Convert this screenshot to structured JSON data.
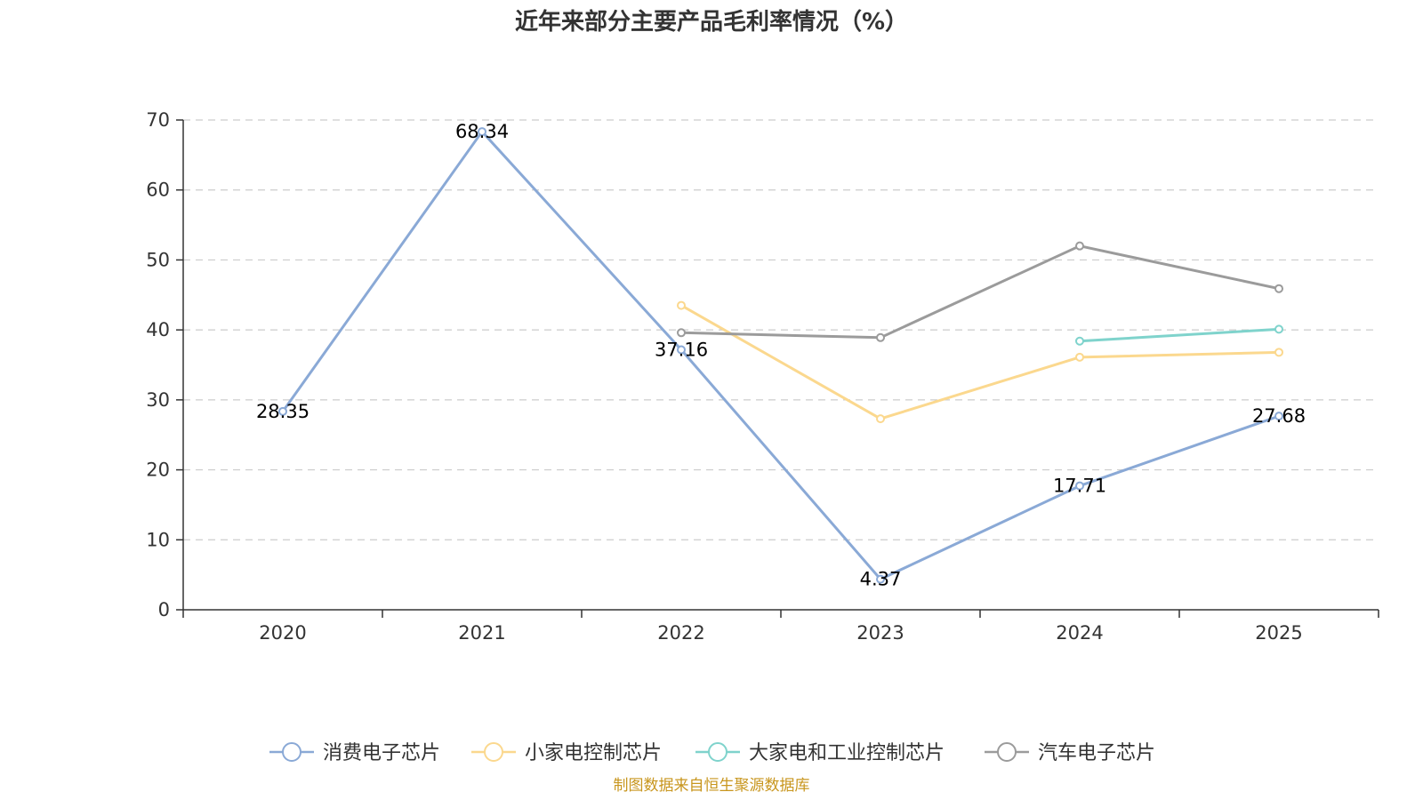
{
  "chart_data": {
    "type": "line",
    "title": "近年来部分主要产品毛利率情况（%）",
    "categories": [
      "2020",
      "2021",
      "2022",
      "2023",
      "2024",
      "2025"
    ],
    "ylim": [
      0,
      70
    ],
    "yticks": [
      0,
      10,
      20,
      30,
      40,
      50,
      60,
      70
    ],
    "grid": true,
    "legend_position": "bottom",
    "series": [
      {
        "name": "消费电子芯片",
        "color": "#8aa9d6",
        "values": [
          28.35,
          68.34,
          37.16,
          4.37,
          17.71,
          27.68
        ],
        "labels": [
          "28.35",
          "68.34",
          "37.16",
          "4.37",
          "17.71",
          "27.68"
        ]
      },
      {
        "name": "小家电控制芯片",
        "color": "#fbd88e",
        "values": [
          null,
          null,
          43.5,
          27.3,
          36.1,
          36.8
        ]
      },
      {
        "name": "大家电和工业控制芯片",
        "color": "#7fd3cc",
        "values": [
          null,
          null,
          null,
          null,
          38.4,
          40.1
        ]
      },
      {
        "name": "汽车电子芯片",
        "color": "#9b9b9b",
        "values": [
          null,
          null,
          39.6,
          38.9,
          52.0,
          45.9
        ]
      }
    ],
    "source": "制图数据来自恒生聚源数据库"
  }
}
